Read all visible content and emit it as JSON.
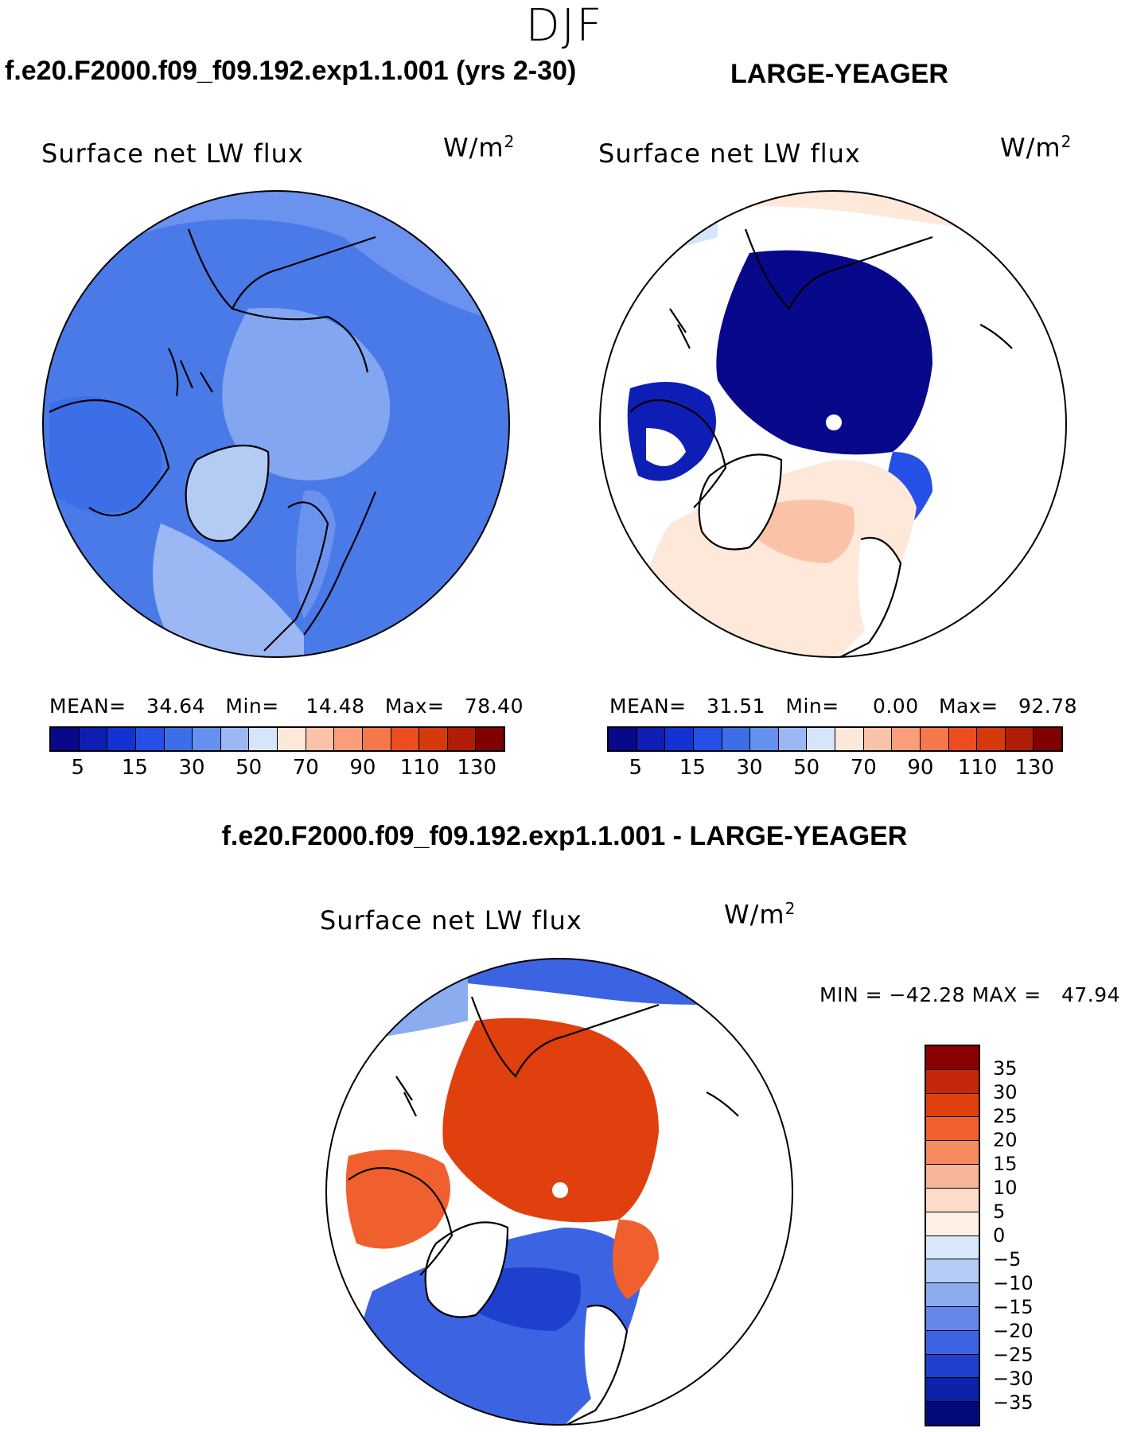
{
  "season": "DJF",
  "panels": {
    "test": {
      "case_title": "f.e20.F2000.f09_f09.192.exp1.1.001 (yrs 2-30)",
      "var_title": "Surface net LW flux",
      "units_base": "W/m",
      "units_exp": "2",
      "mean_label": "MEAN=",
      "mean_value": "34.64",
      "min_label": "Min=",
      "min_value": "14.48",
      "max_label": "Max=",
      "max_value": "78.40"
    },
    "obs": {
      "case_title": "LARGE-YEAGER",
      "var_title": "Surface net LW flux",
      "units_base": "W/m",
      "units_exp": "2",
      "mean_label": "MEAN=",
      "mean_value": "31.51",
      "min_label": "Min=",
      "min_value": "0.00",
      "max_label": "Max=",
      "max_value": "92.78"
    },
    "diff": {
      "case_title": "f.e20.F2000.f09_f09.192.exp1.1.001 - LARGE-YEAGER",
      "var_title": "Surface net LW flux",
      "units_base": "W/m",
      "units_exp": "2",
      "minmax_text": "MIN = −42.28 MAX =   47.94"
    }
  },
  "colorbar_main": {
    "colors": [
      "#08088a",
      "#0e1eb4",
      "#1432d2",
      "#2450e6",
      "#3c6ee8",
      "#6490ee",
      "#9cb8f4",
      "#d6e6fa",
      "#fde8da",
      "#fac3a8",
      "#f89e78",
      "#f4784c",
      "#ec4e20",
      "#d63a0c",
      "#b01c06",
      "#800000"
    ],
    "tick_labels": [
      "5",
      "15",
      "30",
      "50",
      "70",
      "90",
      "110",
      "130"
    ]
  },
  "colorbar_diff": {
    "colors": [
      "#8b0000",
      "#c4260a",
      "#e0400e",
      "#f0602e",
      "#f48a5e",
      "#f8b496",
      "#fcdcc8",
      "#fff0e6",
      "#d8e8fa",
      "#b4ccf6",
      "#8cacf0",
      "#6488ea",
      "#3c64e2",
      "#1e40cc",
      "#0c22a8",
      "#040a7c"
    ],
    "tick_labels": [
      "35",
      "30",
      "25",
      "20",
      "15",
      "10",
      "5",
      "0",
      "−5",
      "−10",
      "−15",
      "−20",
      "−25",
      "−30",
      "−35"
    ]
  },
  "maps": {
    "test_colors": {
      "ocean": "#4a7ae8",
      "land": "#6a92ee",
      "center": "#82a6f0",
      "warm": "#9cb8f4",
      "pale": "#d6e6fa"
    },
    "obs_colors": {
      "cold": "#08088a",
      "mid": "#2450e6",
      "warm": "#fde8da",
      "warm2": "#fac3a8",
      "pale": "#d6e6fa"
    },
    "diff_colors": {
      "pos": "#e0400e",
      "pos2": "#f0602e",
      "neg": "#3c64e2",
      "neg2": "#1e40cc",
      "pale": "#8cacf0"
    }
  }
}
